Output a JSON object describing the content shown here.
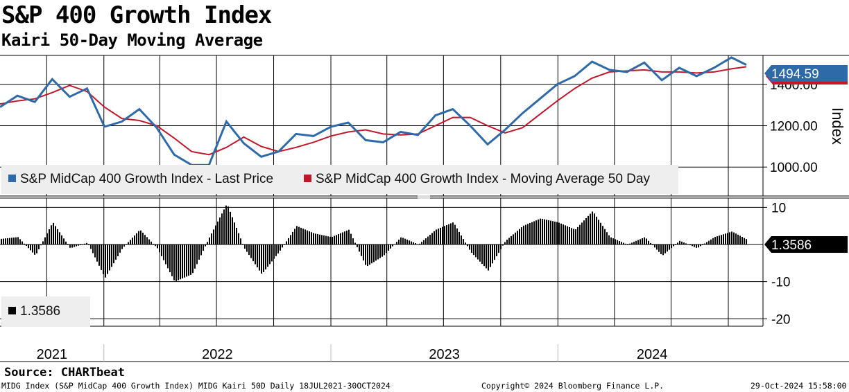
{
  "header": {
    "title": "S&P 400 Growth Index",
    "subtitle": "Kairi 50-Day Moving Average"
  },
  "colors": {
    "price": "#2e6aa8",
    "moving_average": "#c0182a",
    "kairi": "#000000",
    "last_price_tag": "#2e6aa8",
    "kairi_tag": "#000000"
  },
  "chart_data": [
    {
      "type": "line",
      "title": "S&P 400 Growth Index",
      "ylabel": "Index",
      "yticks": [
        "1000.00",
        "1200.00",
        "1400.00"
      ],
      "ylim": [
        860,
        1540
      ],
      "last_value_label": "1494.59",
      "legend_placement": "bottom-left",
      "grid": true,
      "series": [
        {
          "name": "S&P MidCap 400 Growth Index - Last Price",
          "x": [
            "2021-07-18",
            "2021-08-15",
            "2021-09-12",
            "2021-10-10",
            "2021-11-07",
            "2021-12-05",
            "2022-01-02",
            "2022-01-30",
            "2022-02-27",
            "2022-03-27",
            "2022-04-24",
            "2022-05-22",
            "2022-06-19",
            "2022-07-17",
            "2022-08-14",
            "2022-09-11",
            "2022-10-09",
            "2022-11-06",
            "2022-12-04",
            "2023-01-01",
            "2023-01-29",
            "2023-02-26",
            "2023-03-26",
            "2023-04-23",
            "2023-05-21",
            "2023-06-18",
            "2023-07-16",
            "2023-08-13",
            "2023-09-10",
            "2023-10-08",
            "2023-11-05",
            "2023-12-03",
            "2023-12-31",
            "2024-01-28",
            "2024-02-25",
            "2024-03-24",
            "2024-04-21",
            "2024-05-19",
            "2024-06-16",
            "2024-07-14",
            "2024-08-11",
            "2024-09-08",
            "2024-10-06",
            "2024-10-30"
          ],
          "values": [
            1290,
            1345,
            1315,
            1425,
            1340,
            1380,
            1195,
            1220,
            1280,
            1190,
            1060,
            1010,
            1010,
            1220,
            1115,
            1050,
            1075,
            1160,
            1150,
            1195,
            1215,
            1130,
            1120,
            1170,
            1155,
            1250,
            1280,
            1200,
            1110,
            1180,
            1260,
            1330,
            1400,
            1440,
            1510,
            1470,
            1460,
            1505,
            1420,
            1480,
            1440,
            1480,
            1530,
            1494.59
          ]
        },
        {
          "name": "S&P MidCap 400 Growth Index - Moving Average 50 Day",
          "x": [
            "2021-07-18",
            "2021-08-15",
            "2021-09-12",
            "2021-10-10",
            "2021-11-07",
            "2021-12-05",
            "2022-01-02",
            "2022-01-30",
            "2022-02-27",
            "2022-03-27",
            "2022-04-24",
            "2022-05-22",
            "2022-06-19",
            "2022-07-17",
            "2022-08-14",
            "2022-09-11",
            "2022-10-09",
            "2022-11-06",
            "2022-12-04",
            "2023-01-01",
            "2023-01-29",
            "2023-02-26",
            "2023-03-26",
            "2023-04-23",
            "2023-05-21",
            "2023-06-18",
            "2023-07-16",
            "2023-08-13",
            "2023-09-10",
            "2023-10-08",
            "2023-11-05",
            "2023-12-03",
            "2023-12-31",
            "2024-01-28",
            "2024-02-25",
            "2024-03-24",
            "2024-04-21",
            "2024-05-19",
            "2024-06-16",
            "2024-07-14",
            "2024-08-11",
            "2024-09-08",
            "2024-10-06",
            "2024-10-30"
          ],
          "values": [
            1305,
            1320,
            1330,
            1360,
            1395,
            1365,
            1290,
            1235,
            1225,
            1200,
            1140,
            1075,
            1060,
            1095,
            1145,
            1100,
            1075,
            1095,
            1120,
            1150,
            1170,
            1180,
            1160,
            1155,
            1160,
            1200,
            1240,
            1240,
            1200,
            1165,
            1190,
            1255,
            1320,
            1380,
            1430,
            1460,
            1465,
            1470,
            1460,
            1460,
            1455,
            1460,
            1475,
            1485
          ]
        }
      ]
    },
    {
      "type": "bar",
      "title": "Kairi 50-Day Moving Average",
      "yticks": [
        "10",
        "-10",
        "-20"
      ],
      "ylim": [
        -22,
        12.5
      ],
      "last_value_label": "1.3586",
      "legend_label": "1.3586",
      "series": [
        {
          "name": "1.3586",
          "x": [
            "2021-07-18",
            "2021-08-15",
            "2021-09-12",
            "2021-10-10",
            "2021-11-07",
            "2021-12-05",
            "2022-01-02",
            "2022-01-30",
            "2022-02-27",
            "2022-03-27",
            "2022-04-24",
            "2022-05-22",
            "2022-06-19",
            "2022-07-17",
            "2022-08-14",
            "2022-09-11",
            "2022-10-09",
            "2022-11-06",
            "2022-12-04",
            "2023-01-01",
            "2023-01-29",
            "2023-02-26",
            "2023-03-26",
            "2023-04-23",
            "2023-05-21",
            "2023-06-18",
            "2023-07-16",
            "2023-08-13",
            "2023-09-10",
            "2023-10-08",
            "2023-11-05",
            "2023-12-03",
            "2023-12-31",
            "2024-01-28",
            "2024-02-25",
            "2024-03-24",
            "2024-04-21",
            "2024-05-19",
            "2024-06-16",
            "2024-07-14",
            "2024-08-11",
            "2024-09-08",
            "2024-10-06",
            "2024-10-30"
          ],
          "values": [
            1.5,
            2,
            -3,
            6,
            -1,
            0.5,
            -9,
            -1,
            4,
            -1,
            -10,
            -8,
            2,
            11,
            -1,
            -8,
            -2,
            5,
            3,
            2,
            4,
            -6,
            -3,
            2,
            0,
            4,
            6,
            -2,
            -7,
            1,
            5,
            7,
            6,
            4,
            9,
            2,
            0,
            2,
            -3,
            1,
            -1,
            2,
            3.5,
            1.3586
          ]
        }
      ]
    }
  ],
  "x_axis": {
    "years": [
      "2021",
      "2022",
      "2023",
      "2024"
    ]
  },
  "footer": {
    "source": "Source: CHARTbeat",
    "left": "MIDG Index (S&P MidCap 400 Growth Index) MIDG Kairi 50D  Daily 18JUL2021-30OCT2024",
    "center": "Copyright© 2024 Bloomberg Finance L.P.",
    "right": "29-Oct-2024 15:58:00"
  }
}
